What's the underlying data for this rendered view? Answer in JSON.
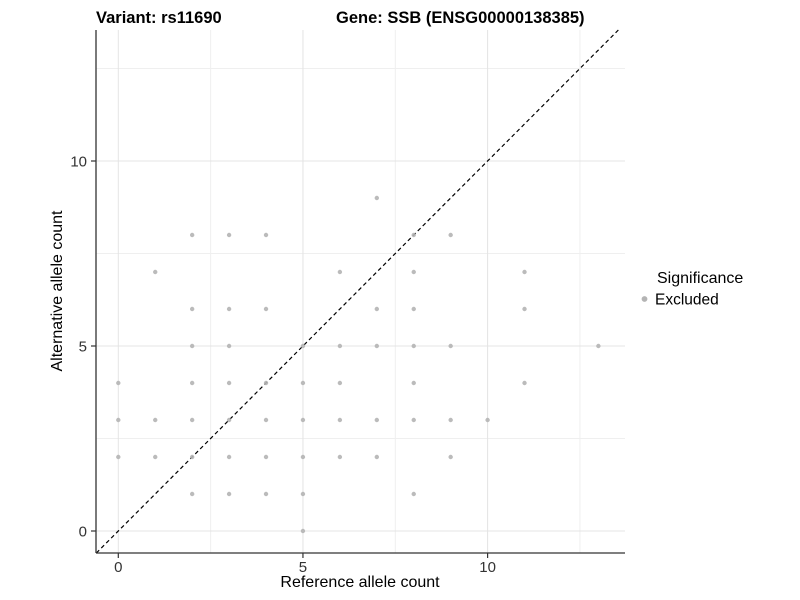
{
  "chart_data": {
    "type": "scatter",
    "title_left": "Variant: rs11690",
    "title_right": "Gene: SSB (ENSG00000138385)",
    "xlabel": "Reference allele count",
    "ylabel": "Alternative allele count",
    "x_ticks": [
      0,
      5,
      10
    ],
    "y_ticks": [
      0,
      5,
      10
    ],
    "x_minor_gridlines": [
      2.5,
      7.5,
      12.5
    ],
    "y_minor_gridlines": [
      2.5,
      7.5,
      12.5
    ],
    "xlim": [
      -0.6,
      13.7
    ],
    "ylim": [
      -0.6,
      13.5
    ],
    "grid": true,
    "identity_line": {
      "equation": "y = x",
      "style": "dashed",
      "color": "#000000"
    },
    "legend": {
      "position": "right",
      "title": "Significance",
      "items": [
        {
          "label": "Excluded",
          "color": "#b4b4b4"
        }
      ]
    },
    "series": [
      {
        "name": "Excluded",
        "points": [
          [
            5,
            0
          ],
          [
            2,
            1
          ],
          [
            3,
            1
          ],
          [
            4,
            1
          ],
          [
            5,
            1
          ],
          [
            8,
            1
          ],
          [
            0,
            2
          ],
          [
            1,
            2
          ],
          [
            2,
            2
          ],
          [
            3,
            2
          ],
          [
            4,
            2
          ],
          [
            5,
            2
          ],
          [
            6,
            2
          ],
          [
            7,
            2
          ],
          [
            9,
            2
          ],
          [
            0,
            3
          ],
          [
            1,
            3
          ],
          [
            2,
            3
          ],
          [
            3,
            3
          ],
          [
            4,
            3
          ],
          [
            5,
            3
          ],
          [
            6,
            3
          ],
          [
            7,
            3
          ],
          [
            8,
            3
          ],
          [
            9,
            3
          ],
          [
            10,
            3
          ],
          [
            0,
            4
          ],
          [
            2,
            4
          ],
          [
            3,
            4
          ],
          [
            4,
            4
          ],
          [
            5,
            4
          ],
          [
            6,
            4
          ],
          [
            8,
            4
          ],
          [
            11,
            4
          ],
          [
            2,
            5
          ],
          [
            3,
            5
          ],
          [
            5,
            5
          ],
          [
            6,
            5
          ],
          [
            7,
            5
          ],
          [
            8,
            5
          ],
          [
            9,
            5
          ],
          [
            13,
            5
          ],
          [
            2,
            6
          ],
          [
            3,
            6
          ],
          [
            4,
            6
          ],
          [
            7,
            6
          ],
          [
            8,
            6
          ],
          [
            11,
            6
          ],
          [
            1,
            7
          ],
          [
            6,
            7
          ],
          [
            8,
            7
          ],
          [
            11,
            7
          ],
          [
            2,
            8
          ],
          [
            3,
            8
          ],
          [
            4,
            8
          ],
          [
            8,
            8
          ],
          [
            9,
            8
          ],
          [
            7,
            9
          ]
        ]
      }
    ],
    "colors": {
      "point": "#b4b4b4",
      "grid_major": "#e4e4e4",
      "grid_minor": "#efefef",
      "axis": "#333333",
      "tick_text": "#333333",
      "identity_line": "#000000",
      "background": "#ffffff"
    }
  }
}
